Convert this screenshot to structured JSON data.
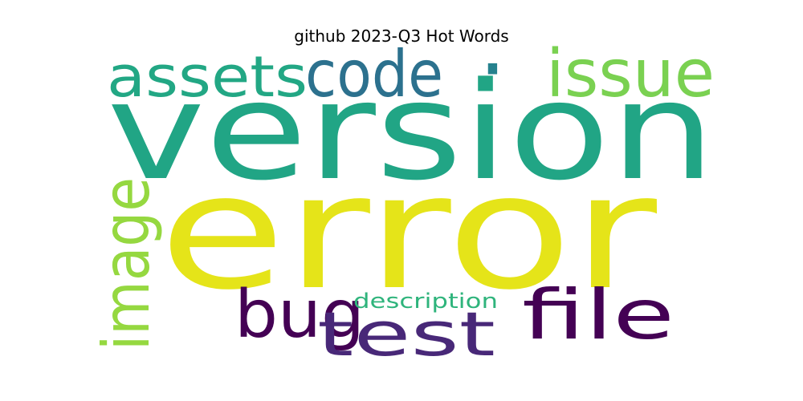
{
  "title": "github 2023-Q3 Hot Words",
  "words": [
    {
      "text": "version",
      "color": "#21a585"
    },
    {
      "text": "error",
      "color": "#e5e419"
    },
    {
      "text": "assets",
      "color": "#22a784"
    },
    {
      "text": "code",
      "color": "#2c718e"
    },
    {
      "text": "·",
      "color": "#26828e"
    },
    {
      "text": "issue",
      "color": "#7ad151"
    },
    {
      "text": "image",
      "color": "#95d840"
    },
    {
      "text": "bug",
      "color": "#440154"
    },
    {
      "text": "test",
      "color": "#482878"
    },
    {
      "text": "file",
      "color": "#440154"
    },
    {
      "text": "description",
      "color": "#2fb47c"
    }
  ]
}
